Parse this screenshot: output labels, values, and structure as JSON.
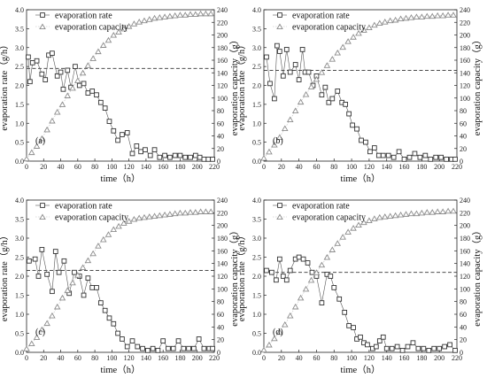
{
  "figure": {
    "background": "#ffffff"
  },
  "chart_data": [
    {
      "type": "line",
      "panel_label": "(a)",
      "xlabel": "time（h）",
      "ylabel_left": "evaporation rate（g/h）",
      "ylabel_right": "evaporation capacity（g）",
      "xlim": [
        0,
        220
      ],
      "ylim_left": [
        0,
        4.0
      ],
      "ylim_right": [
        0,
        240
      ],
      "xticks": [
        0,
        20,
        40,
        60,
        80,
        100,
        120,
        140,
        160,
        180,
        200,
        220
      ],
      "yticks_left": [
        0.0,
        0.5,
        1.0,
        1.5,
        2.0,
        2.5,
        3.0,
        3.5,
        4.0
      ],
      "yticks_right": [
        0,
        20,
        40,
        60,
        80,
        100,
        120,
        140,
        160,
        180,
        200,
        220,
        240
      ],
      "legend": [
        "evaporation rate",
        "evaporation capacity"
      ],
      "reference_line": 2.45,
      "series": [
        {
          "name": "evaporation rate",
          "axis": "left",
          "marker": "square",
          "color": "#333333",
          "x": [
            2,
            4,
            7,
            12,
            18,
            22,
            26,
            30,
            36,
            40,
            43,
            48,
            52,
            57,
            62,
            67,
            72,
            77,
            82,
            87,
            92,
            97,
            102,
            107,
            112,
            118,
            124,
            129,
            134,
            139,
            145,
            150,
            156,
            162,
            168,
            174,
            180,
            186,
            192,
            198,
            203,
            208,
            213,
            218
          ],
          "y": [
            2.75,
            2.1,
            2.6,
            2.65,
            2.3,
            2.15,
            2.8,
            2.85,
            2.25,
            2.35,
            1.9,
            2.4,
            1.95,
            2.5,
            2.0,
            2.05,
            1.8,
            1.85,
            1.75,
            1.55,
            1.4,
            1.05,
            0.8,
            0.55,
            0.7,
            0.75,
            0.2,
            0.4,
            0.25,
            0.3,
            0.15,
            0.3,
            0.1,
            0.15,
            0.1,
            0.15,
            0.15,
            0.1,
            0.1,
            0.15,
            0.1,
            0.05,
            0.05,
            0.05
          ]
        },
        {
          "name": "evaporation capacity",
          "axis": "right",
          "marker": "triangle",
          "color": "#8c8c8c",
          "x": [
            0,
            6,
            12,
            18,
            24,
            30,
            36,
            42,
            48,
            54,
            60,
            66,
            72,
            78,
            84,
            90,
            96,
            102,
            108,
            114,
            120,
            126,
            132,
            138,
            144,
            150,
            156,
            162,
            168,
            174,
            180,
            186,
            192,
            198,
            204,
            210,
            216
          ],
          "y": [
            4,
            14,
            24,
            36,
            50,
            64,
            78,
            90,
            104,
            116,
            128,
            140,
            152,
            163,
            174,
            184,
            192,
            200,
            205,
            210,
            214,
            218,
            221,
            223,
            225,
            227,
            228,
            229,
            230,
            231,
            232,
            232,
            233,
            233,
            234,
            234,
            234
          ]
        }
      ]
    },
    {
      "type": "line",
      "panel_label": "(b)",
      "xlabel": "time（h）",
      "ylabel_left": "evaporation rate（g/h）",
      "ylabel_right": "evaporation capacity（g）",
      "xlim": [
        0,
        220
      ],
      "ylim_left": [
        0,
        4.0
      ],
      "ylim_right": [
        0,
        240
      ],
      "xticks": [
        0,
        20,
        40,
        60,
        80,
        100,
        120,
        140,
        160,
        180,
        200,
        220
      ],
      "yticks_left": [
        0.0,
        0.5,
        1.0,
        1.5,
        2.0,
        2.5,
        3.0,
        3.5,
        4.0
      ],
      "yticks_right": [
        0,
        20,
        40,
        60,
        80,
        100,
        120,
        140,
        160,
        180,
        200,
        220,
        240
      ],
      "legend": [
        "evaporation rate",
        "evaporation capacity"
      ],
      "reference_line": 2.4,
      "series": [
        {
          "name": "evaporation rate",
          "axis": "left",
          "marker": "square",
          "color": "#333333",
          "x": [
            3,
            7,
            12,
            15,
            18,
            22,
            26,
            30,
            36,
            40,
            44,
            47,
            51,
            56,
            60,
            66,
            70,
            74,
            78,
            84,
            89,
            93,
            97,
            101,
            106,
            111,
            116,
            121,
            126,
            131,
            136,
            142,
            148,
            154,
            160,
            166,
            172,
            178,
            184,
            190,
            196,
            202,
            208,
            214,
            218
          ],
          "y": [
            2.75,
            2.05,
            1.65,
            3.05,
            2.9,
            2.25,
            2.95,
            2.35,
            2.55,
            2.15,
            2.95,
            2.35,
            2.35,
            2.0,
            2.25,
            1.75,
            1.95,
            1.55,
            1.65,
            1.85,
            1.55,
            1.5,
            1.25,
            0.95,
            0.85,
            0.55,
            0.5,
            0.25,
            0.35,
            0.15,
            0.15,
            0.15,
            0.1,
            0.25,
            0.05,
            0.1,
            0.2,
            0.1,
            0.15,
            0.05,
            0.1,
            0.1,
            0.05,
            0.05,
            0.05
          ]
        },
        {
          "name": "evaporation capacity",
          "axis": "right",
          "marker": "triangle",
          "color": "#8c8c8c",
          "x": [
            0,
            6,
            12,
            18,
            24,
            30,
            36,
            42,
            48,
            54,
            60,
            66,
            72,
            78,
            84,
            90,
            96,
            102,
            108,
            114,
            120,
            126,
            132,
            138,
            144,
            150,
            156,
            162,
            168,
            174,
            180,
            186,
            192,
            198,
            204,
            210,
            216
          ],
          "y": [
            5,
            15,
            26,
            38,
            52,
            66,
            80,
            94,
            106,
            118,
            130,
            141,
            152,
            162,
            172,
            181,
            190,
            197,
            203,
            208,
            212,
            216,
            219,
            221,
            223,
            224,
            226,
            227,
            228,
            229,
            229,
            230,
            230,
            231,
            231,
            232,
            232
          ]
        }
      ]
    },
    {
      "type": "line",
      "panel_label": "(c)",
      "xlabel": "time（h）",
      "ylabel_left": "evaporation rate（g/h）",
      "ylabel_right": "evaporation capacity（g）",
      "xlim": [
        0,
        220
      ],
      "ylim_left": [
        0,
        4.0
      ],
      "ylim_right": [
        0,
        240
      ],
      "xticks": [
        0,
        20,
        40,
        60,
        80,
        100,
        120,
        140,
        160,
        180,
        200,
        220
      ],
      "yticks_left": [
        0.0,
        0.5,
        1.0,
        1.5,
        2.0,
        2.5,
        3.0,
        3.5,
        4.0
      ],
      "yticks_right": [
        0,
        20,
        40,
        60,
        80,
        100,
        120,
        140,
        160,
        180,
        200,
        220,
        240
      ],
      "legend": [
        "evaporation rate",
        "evaporation capacity"
      ],
      "reference_line": 2.15,
      "series": [
        {
          "name": "evaporation rate",
          "axis": "left",
          "marker": "square",
          "color": "#333333",
          "x": [
            3,
            10,
            14,
            18,
            24,
            30,
            34,
            38,
            44,
            50,
            56,
            62,
            67,
            72,
            77,
            82,
            87,
            92,
            97,
            102,
            107,
            112,
            118,
            124,
            130,
            136,
            142,
            148,
            154,
            160,
            166,
            172,
            178,
            184,
            190,
            196,
            202,
            208,
            214,
            218
          ],
          "y": [
            2.4,
            2.45,
            2.0,
            2.7,
            2.05,
            1.6,
            2.65,
            2.1,
            2.4,
            1.55,
            2.1,
            2.0,
            1.5,
            1.95,
            1.7,
            1.7,
            1.3,
            1.1,
            0.9,
            0.75,
            0.5,
            0.35,
            0.15,
            0.3,
            0.15,
            0.1,
            0.05,
            0.1,
            0.05,
            0.3,
            0.1,
            0.1,
            0.3,
            0.1,
            0.1,
            0.1,
            0.35,
            0.1,
            0.1,
            0.1
          ]
        },
        {
          "name": "evaporation capacity",
          "axis": "right",
          "marker": "triangle",
          "color": "#8c8c8c",
          "x": [
            0,
            6,
            12,
            18,
            24,
            30,
            36,
            42,
            48,
            54,
            60,
            66,
            72,
            78,
            84,
            90,
            96,
            102,
            108,
            114,
            120,
            126,
            132,
            138,
            144,
            150,
            156,
            162,
            168,
            174,
            180,
            186,
            192,
            198,
            204,
            210,
            216
          ],
          "y": [
            6,
            14,
            24,
            36,
            46,
            58,
            72,
            86,
            98,
            110,
            122,
            134,
            145,
            156,
            168,
            178,
            186,
            194,
            199,
            204,
            207,
            210,
            212,
            213,
            214,
            215,
            216,
            217,
            218,
            219,
            220,
            220,
            221,
            221,
            222,
            222,
            222
          ]
        }
      ]
    },
    {
      "type": "line",
      "panel_label": "(d)",
      "xlabel": "time（h）",
      "ylabel_left": "evaporation rate（g/h）",
      "ylabel_right": "evaporation capacity（g）",
      "xlim": [
        0,
        220
      ],
      "ylim_left": [
        0,
        4.0
      ],
      "ylim_right": [
        0,
        240
      ],
      "xticks": [
        0,
        20,
        40,
        60,
        80,
        100,
        120,
        140,
        160,
        180,
        200,
        220
      ],
      "yticks_left": [
        0.0,
        0.5,
        1.0,
        1.5,
        2.0,
        2.5,
        3.0,
        3.5,
        4.0
      ],
      "yticks_right": [
        0,
        20,
        40,
        60,
        80,
        100,
        120,
        140,
        160,
        180,
        200,
        220,
        240
      ],
      "legend": [
        "evaporation rate",
        "evaporation capacity"
      ],
      "reference_line": 2.1,
      "series": [
        {
          "name": "evaporation rate",
          "axis": "left",
          "marker": "square",
          "color": "#333333",
          "x": [
            3,
            9,
            14,
            18,
            22,
            26,
            30,
            36,
            40,
            45,
            50,
            55,
            60,
            66,
            72,
            76,
            80,
            86,
            92,
            97,
            102,
            106,
            110,
            114,
            118,
            124,
            128,
            132,
            136,
            140,
            146,
            152,
            158,
            164,
            170,
            176,
            182,
            188,
            194,
            200,
            206,
            212,
            218
          ],
          "y": [
            2.15,
            2.1,
            1.9,
            2.45,
            2.0,
            1.9,
            2.15,
            2.45,
            2.5,
            2.45,
            2.35,
            2.1,
            2.0,
            1.3,
            2.05,
            2.0,
            1.7,
            1.4,
            1.05,
            0.7,
            0.65,
            0.35,
            0.4,
            0.25,
            0.2,
            0.1,
            0.15,
            0.3,
            0.4,
            0.1,
            0.1,
            0.15,
            0.05,
            0.15,
            0.25,
            0.1,
            0.1,
            0.05,
            0.1,
            0.1,
            0.15,
            0.2,
            0.05
          ]
        },
        {
          "name": "evaporation capacity",
          "axis": "right",
          "marker": "triangle",
          "color": "#8c8c8c",
          "x": [
            0,
            6,
            12,
            18,
            24,
            30,
            36,
            42,
            48,
            54,
            60,
            66,
            72,
            78,
            84,
            90,
            96,
            102,
            108,
            114,
            120,
            126,
            132,
            138,
            144,
            150,
            156,
            162,
            168,
            174,
            180,
            186,
            192,
            198,
            204,
            210,
            216
          ],
          "y": [
            4,
            12,
            22,
            32,
            44,
            58,
            72,
            86,
            100,
            114,
            126,
            138,
            150,
            162,
            172,
            182,
            190,
            196,
            201,
            205,
            208,
            211,
            213,
            214,
            215,
            216,
            217,
            218,
            219,
            219,
            220,
            221,
            221,
            222,
            222,
            223,
            223
          ]
        }
      ]
    }
  ]
}
